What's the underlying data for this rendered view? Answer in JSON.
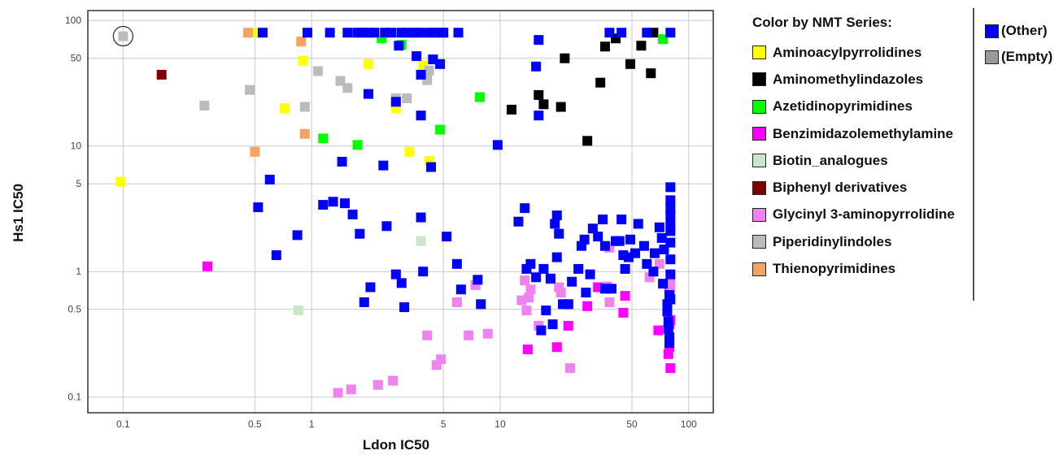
{
  "chart_data": {
    "type": "scatter",
    "xlabel": "Ldon IC50",
    "ylabel": "Hs1 IC50",
    "xscale": "log",
    "yscale": "log",
    "xlim": [
      0.065,
      135
    ],
    "ylim": [
      0.075,
      120
    ],
    "xticks": [
      0.1,
      0.5,
      1,
      5,
      10,
      50,
      100
    ],
    "xtick_labels": [
      "0.1",
      "0.5",
      "1",
      "5",
      "10",
      "50",
      "100"
    ],
    "yticks": [
      0.1,
      0.5,
      1,
      5,
      10,
      50,
      100
    ],
    "ytick_labels": [
      "0.1",
      "0.5",
      "1",
      "5",
      "10",
      "50",
      "100"
    ],
    "grid": true,
    "legend_position": "right",
    "legend_title": "Color by NMT Series:",
    "series": [
      {
        "name": "Aminoacylpyrrolidines",
        "color": "#ffff00",
        "points": [
          [
            0.097,
            5.2
          ],
          [
            0.52,
            80
          ],
          [
            0.9,
            48
          ],
          [
            0.72,
            20
          ],
          [
            2.0,
            45
          ],
          [
            2.8,
            20
          ],
          [
            3.3,
            9
          ],
          [
            3.9,
            44
          ],
          [
            4.2,
            7.6
          ]
        ]
      },
      {
        "name": "Aminomethylindazoles",
        "color": "#000000",
        "points": [
          [
            22,
            50
          ],
          [
            11.5,
            19.5
          ],
          [
            16,
            25.5
          ],
          [
            17,
            21.5
          ],
          [
            21,
            20.5
          ],
          [
            29,
            11
          ],
          [
            34,
            32
          ],
          [
            36,
            62
          ],
          [
            41,
            72
          ],
          [
            49,
            45
          ],
          [
            56,
            63
          ],
          [
            63,
            38
          ],
          [
            65,
            80
          ]
        ]
      },
      {
        "name": "Azetidinopyrimidines",
        "color": "#00ff00",
        "points": [
          [
            1.15,
            11.5
          ],
          [
            1.75,
            10.2
          ],
          [
            2.35,
            72
          ],
          [
            3.0,
            64
          ],
          [
            4.8,
            13.5
          ],
          [
            7.8,
            24.5
          ],
          [
            73,
            71
          ]
        ]
      },
      {
        "name": "Benzimidazolemethylamine",
        "color": "#ff00ff",
        "points": [
          [
            0.28,
            1.1
          ],
          [
            14,
            0.24
          ],
          [
            20,
            0.25
          ],
          [
            23,
            0.37
          ],
          [
            29,
            0.53
          ],
          [
            45,
            0.47
          ],
          [
            46,
            0.64
          ],
          [
            69,
            0.34
          ],
          [
            78,
            0.22
          ],
          [
            79,
            0.25
          ],
          [
            80,
            0.17
          ],
          [
            80,
            0.41
          ],
          [
            79,
            0.72
          ],
          [
            79,
            0.38
          ],
          [
            33,
            0.75
          ]
        ]
      },
      {
        "name": "Biotin_analogues",
        "color": "#c8e6c8",
        "points": [
          [
            0.85,
            0.49
          ],
          [
            3.8,
            1.75
          ]
        ]
      },
      {
        "name": "Biphenyl derivatives",
        "color": "#800000",
        "points": [
          [
            0.16,
            37
          ],
          [
            4.9,
            80
          ]
        ]
      },
      {
        "name": "Glycinyl 3-aminopyrrolidine",
        "color": "#ee82ee",
        "points": [
          [
            1.38,
            0.108
          ],
          [
            1.62,
            0.115
          ],
          [
            2.25,
            0.125
          ],
          [
            2.7,
            0.135
          ],
          [
            4.85,
            0.2
          ],
          [
            4.6,
            0.18
          ],
          [
            4.1,
            0.31
          ],
          [
            5.9,
            0.57
          ],
          [
            6.8,
            0.31
          ],
          [
            7.4,
            0.78
          ],
          [
            8.6,
            0.32
          ],
          [
            13,
            0.59
          ],
          [
            13.5,
            0.85
          ],
          [
            13.8,
            0.49
          ],
          [
            14.2,
            0.62
          ],
          [
            14.5,
            0.72
          ],
          [
            16,
            0.37
          ],
          [
            18.5,
            0.87
          ],
          [
            20.5,
            0.75
          ],
          [
            21,
            0.68
          ],
          [
            23.5,
            0.17
          ],
          [
            37,
            0.76
          ],
          [
            38,
            1.55
          ],
          [
            38,
            0.57
          ],
          [
            62,
            0.9
          ],
          [
            70,
            1.15
          ],
          [
            80,
            0.67
          ],
          [
            80,
            0.8
          ]
        ]
      },
      {
        "name": "Piperidinylindoles",
        "color": "#bbbbbb",
        "points": [
          [
            0.1,
            75
          ],
          [
            0.27,
            21
          ],
          [
            0.47,
            28
          ],
          [
            0.92,
            20.5
          ],
          [
            1.08,
            39.5
          ],
          [
            1.42,
            33
          ],
          [
            1.55,
            29
          ],
          [
            2.8,
            24
          ],
          [
            3.2,
            24
          ],
          [
            4.1,
            33.5
          ],
          [
            4.2,
            40
          ],
          [
            2.4,
            80
          ]
        ]
      },
      {
        "name": "Thienopyrimidines",
        "color": "#f4a460",
        "points": [
          [
            0.46,
            80
          ],
          [
            0.5,
            9
          ],
          [
            0.88,
            68
          ],
          [
            0.92,
            12.5
          ],
          [
            4.4,
            80
          ]
        ]
      },
      {
        "name": "(Other)",
        "color": "#0000ff",
        "points": [
          [
            0.55,
            80
          ],
          [
            0.95,
            80
          ],
          [
            1.25,
            80
          ],
          [
            1.55,
            80
          ],
          [
            1.75,
            80
          ],
          [
            1.85,
            80
          ],
          [
            2.0,
            80
          ],
          [
            2.15,
            80
          ],
          [
            2.45,
            80
          ],
          [
            2.65,
            80
          ],
          [
            3.0,
            80
          ],
          [
            3.2,
            80
          ],
          [
            3.5,
            80
          ],
          [
            3.7,
            80
          ],
          [
            4.1,
            80
          ],
          [
            4.5,
            80
          ],
          [
            5.0,
            80
          ],
          [
            6.0,
            80
          ],
          [
            2.9,
            63
          ],
          [
            3.6,
            52
          ],
          [
            3.8,
            37
          ],
          [
            4.4,
            49
          ],
          [
            4.8,
            45
          ],
          [
            16,
            70
          ],
          [
            15.5,
            43
          ],
          [
            9.7,
            10.2
          ],
          [
            1.45,
            7.5
          ],
          [
            2.4,
            7.0
          ],
          [
            4.3,
            6.8
          ],
          [
            2.0,
            26
          ],
          [
            2.8,
            22.5
          ],
          [
            3.8,
            17.5
          ],
          [
            16,
            17.5
          ],
          [
            38,
            80
          ],
          [
            44,
            80
          ],
          [
            60,
            80
          ],
          [
            80,
            80
          ],
          [
            0.52,
            3.25
          ],
          [
            0.6,
            5.4
          ],
          [
            0.65,
            1.35
          ],
          [
            0.84,
            1.95
          ],
          [
            1.15,
            3.4
          ],
          [
            1.3,
            3.6
          ],
          [
            1.5,
            3.5
          ],
          [
            1.65,
            2.85
          ],
          [
            1.8,
            2.0
          ],
          [
            1.9,
            0.57
          ],
          [
            2.05,
            0.75
          ],
          [
            2.5,
            2.3
          ],
          [
            2.8,
            0.95
          ],
          [
            3.0,
            0.81
          ],
          [
            3.1,
            0.52
          ],
          [
            3.8,
            2.7
          ],
          [
            3.9,
            1.0
          ],
          [
            5.2,
            1.9
          ],
          [
            5.9,
            1.15
          ],
          [
            6.2,
            0.72
          ],
          [
            7.6,
            0.86
          ],
          [
            7.9,
            0.55
          ],
          [
            12.5,
            2.5
          ],
          [
            13.5,
            3.2
          ],
          [
            13.8,
            1.05
          ],
          [
            14.5,
            1.15
          ],
          [
            15.5,
            0.9
          ],
          [
            16.5,
            0.34
          ],
          [
            17,
            1.05
          ],
          [
            17.5,
            0.49
          ],
          [
            18.5,
            0.88
          ],
          [
            19,
            0.38
          ],
          [
            19.5,
            2.4
          ],
          [
            20,
            2.8
          ],
          [
            20,
            1.3
          ],
          [
            20.5,
            2.0
          ],
          [
            21.5,
            0.55
          ],
          [
            23,
            0.55
          ],
          [
            24,
            0.83
          ],
          [
            26,
            1.05
          ],
          [
            27,
            1.6
          ],
          [
            28,
            1.8
          ],
          [
            28.5,
            0.68
          ],
          [
            30,
            0.95
          ],
          [
            31,
            2.2
          ],
          [
            33,
            1.9
          ],
          [
            35,
            2.6
          ],
          [
            36,
            1.6
          ],
          [
            36,
            0.73
          ],
          [
            39,
            0.73
          ],
          [
            41,
            1.75
          ],
          [
            43,
            1.75
          ],
          [
            44,
            2.6
          ],
          [
            45,
            1.35
          ],
          [
            46,
            1.05
          ],
          [
            48,
            1.3
          ],
          [
            49,
            1.8
          ],
          [
            52,
            1.4
          ],
          [
            54,
            2.4
          ],
          [
            58,
            1.6
          ],
          [
            60,
            1.15
          ],
          [
            65,
            1.0
          ],
          [
            66,
            1.4
          ],
          [
            70,
            2.25
          ],
          [
            72,
            1.85
          ],
          [
            73,
            0.8
          ],
          [
            74,
            1.5
          ],
          [
            77,
            0.55
          ],
          [
            77,
            0.48
          ],
          [
            78,
            0.4
          ],
          [
            78,
            0.35
          ],
          [
            79,
            0.3
          ],
          [
            79,
            0.27
          ],
          [
            79,
            0.65
          ],
          [
            80,
            0.6
          ],
          [
            80,
            0.95
          ],
          [
            80,
            1.25
          ],
          [
            80,
            1.7
          ],
          [
            80,
            2.1
          ],
          [
            80,
            2.35
          ],
          [
            80,
            2.8
          ],
          [
            80,
            3.2
          ],
          [
            80,
            3.7
          ],
          [
            80,
            4.7
          ]
        ]
      },
      {
        "name": "(Empty)",
        "color": "#999999",
        "points": []
      }
    ]
  }
}
